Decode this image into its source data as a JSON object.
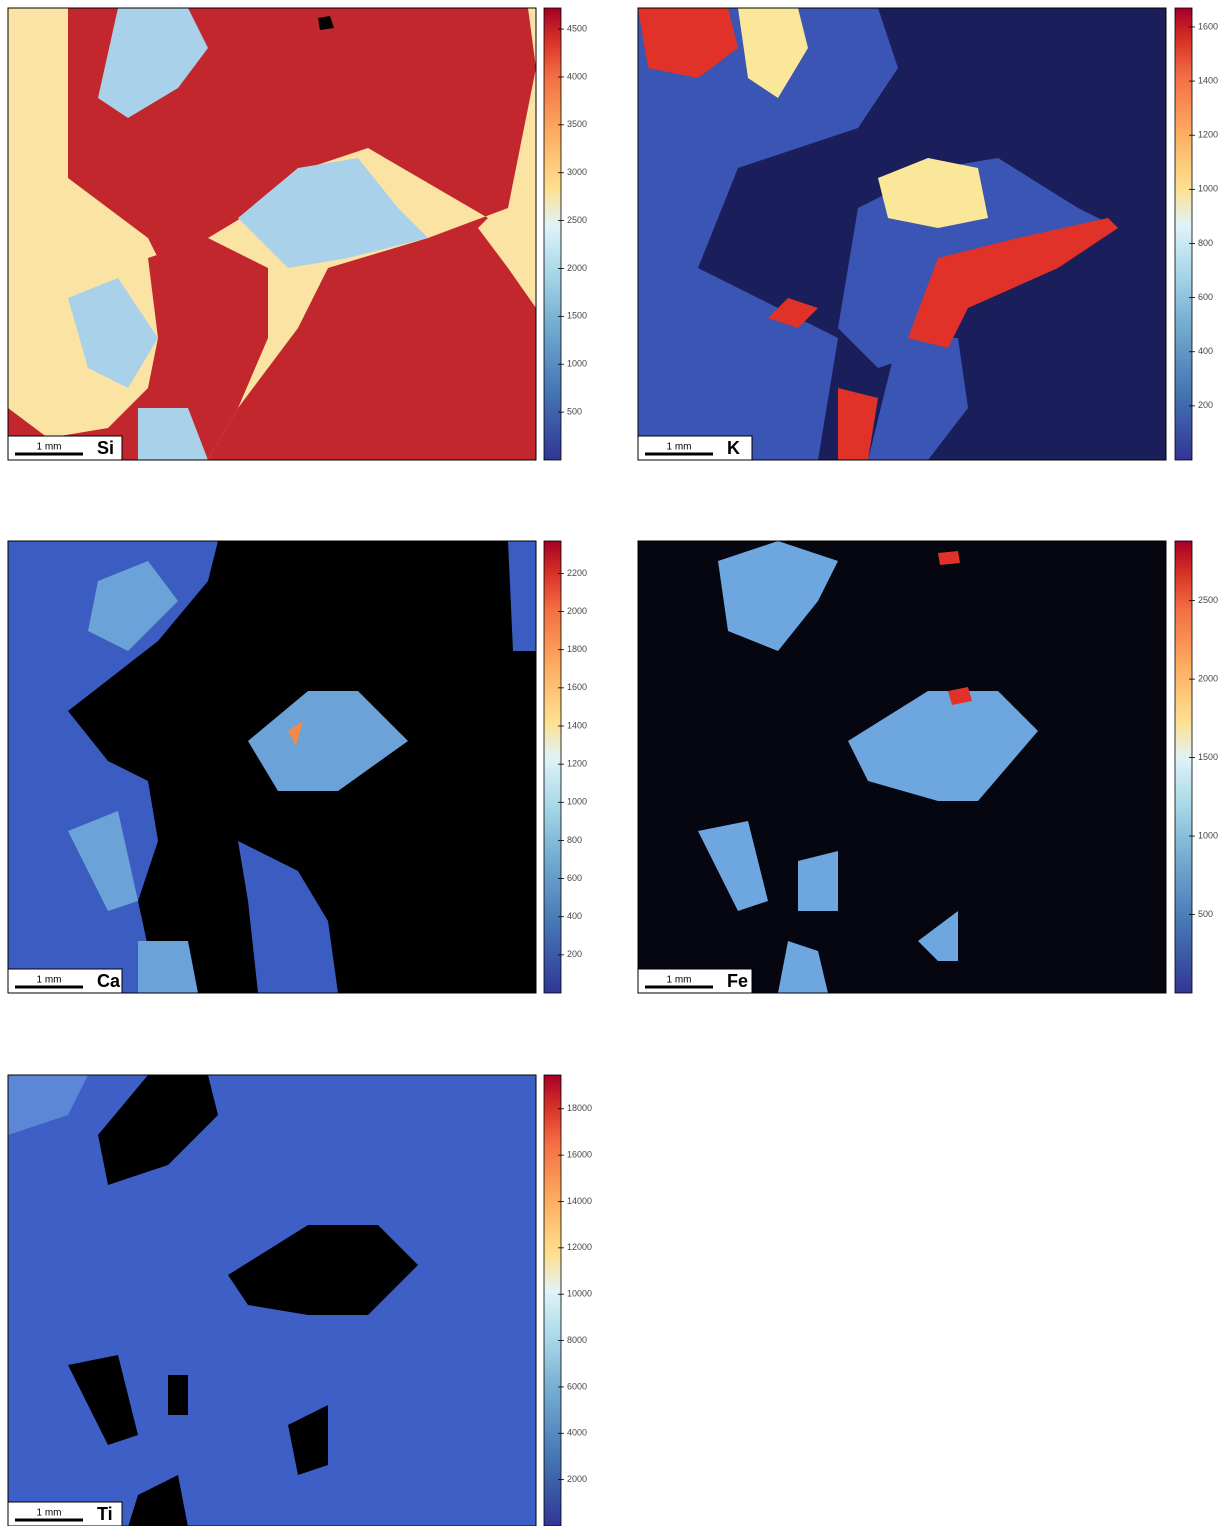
{
  "panels": [
    {
      "element": "Si",
      "scale_label": "1 mm",
      "colorbar": {
        "clim": [
          0,
          4720
        ],
        "ticks": [
          500,
          1000,
          1500,
          2000,
          2500,
          3000,
          3500,
          4000,
          4500
        ]
      }
    },
    {
      "element": "K",
      "scale_label": "1 mm",
      "colorbar": {
        "clim": [
          0,
          1670
        ],
        "ticks": [
          200,
          400,
          600,
          800,
          1000,
          1200,
          1400,
          1600
        ]
      }
    },
    {
      "element": "Ca",
      "scale_label": "1 mm",
      "colorbar": {
        "clim": [
          0,
          2370
        ],
        "ticks": [
          200,
          400,
          600,
          800,
          1000,
          1200,
          1400,
          1600,
          1800,
          2000,
          2200
        ]
      }
    },
    {
      "element": "Fe",
      "scale_label": "1 mm",
      "colorbar": {
        "clim": [
          0,
          2880
        ],
        "ticks": [
          500,
          1000,
          1500,
          2000,
          2500
        ]
      }
    },
    {
      "element": "Ti",
      "scale_label": "1 mm",
      "colorbar": {
        "clim": [
          0,
          19500
        ],
        "ticks": [
          2000,
          4000,
          6000,
          8000,
          10000,
          12000,
          14000,
          16000,
          18000
        ]
      }
    }
  ]
}
